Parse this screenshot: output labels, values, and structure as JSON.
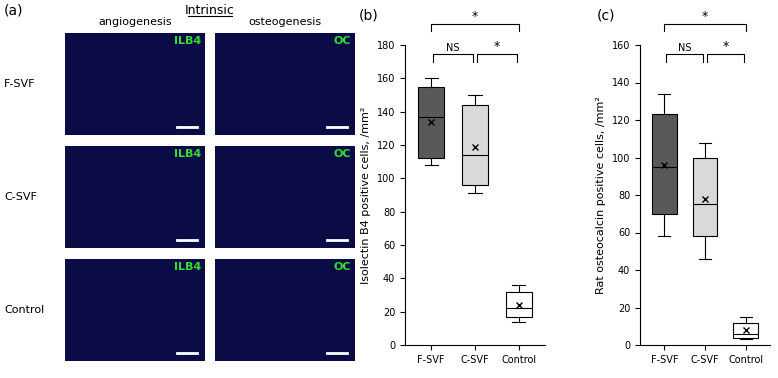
{
  "image_panel": {
    "panel_label": "(a)",
    "title": "Intrinsic",
    "columns": [
      "angiogenesis",
      "osteogenesis"
    ],
    "rows": [
      "F-SVF",
      "C-SVF",
      "Control"
    ],
    "stains": [
      "ILB4",
      "OC"
    ]
  },
  "chart_data": [
    {
      "type": "box",
      "panel_label": "(b)",
      "y_label": "Isolectin B4 positive cells, /mm²",
      "categories": [
        "F-SVF",
        "C-SVF",
        "Control"
      ],
      "colors": [
        "#595959",
        "#d9d9d9",
        "#ffffff"
      ],
      "whisker_low": [
        108,
        91,
        14
      ],
      "q1": [
        112,
        96,
        17
      ],
      "median": [
        137,
        114,
        22
      ],
      "q3": [
        155,
        144,
        32
      ],
      "whisker_high": [
        160,
        150,
        36
      ],
      "mean": [
        134,
        119,
        24
      ],
      "ylim": [
        0,
        180
      ],
      "yticks": [
        0,
        20,
        40,
        60,
        80,
        100,
        120,
        140,
        160,
        180
      ],
      "annotations": [
        {
          "pair": [
            0,
            2
          ],
          "text": "*"
        },
        {
          "pair": [
            0,
            1
          ],
          "text": "NS"
        },
        {
          "pair": [
            1,
            2
          ],
          "text": "*"
        }
      ]
    },
    {
      "type": "box",
      "panel_label": "(c)",
      "y_label": "Rat osteocalcin positive cells, /mm²",
      "categories": [
        "F-SVF",
        "C-SVF",
        "Control"
      ],
      "colors": [
        "#595959",
        "#d9d9d9",
        "#ffffff"
      ],
      "whisker_low": [
        58,
        46,
        3
      ],
      "q1": [
        70,
        58,
        4
      ],
      "median": [
        95,
        75,
        6
      ],
      "q3": [
        123,
        100,
        12
      ],
      "whisker_high": [
        134,
        108,
        15
      ],
      "mean": [
        96,
        78,
        8
      ],
      "ylim": [
        0,
        160
      ],
      "yticks": [
        0,
        20,
        40,
        60,
        80,
        100,
        120,
        140,
        160
      ],
      "annotations": [
        {
          "pair": [
            0,
            2
          ],
          "text": "*"
        },
        {
          "pair": [
            0,
            1
          ],
          "text": "NS"
        },
        {
          "pair": [
            1,
            2
          ],
          "text": "*"
        }
      ]
    }
  ]
}
